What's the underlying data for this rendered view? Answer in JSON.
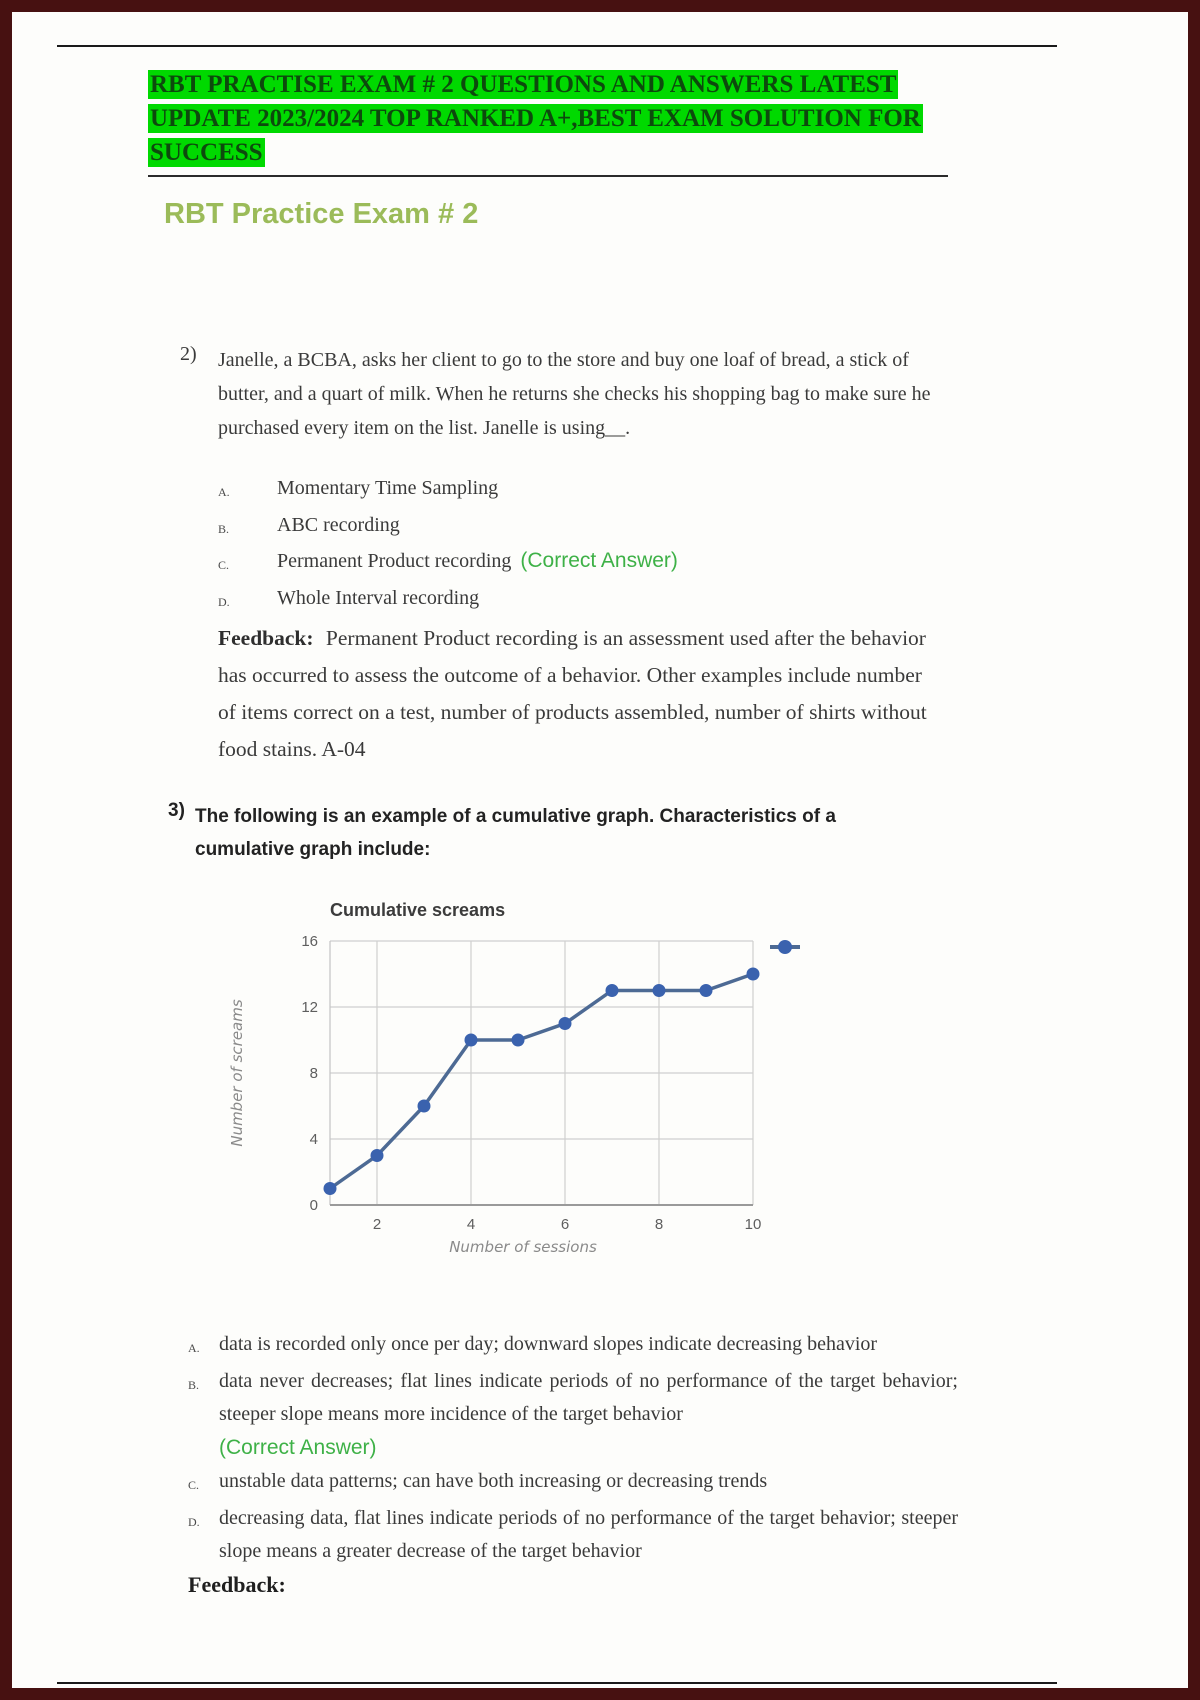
{
  "document": {
    "header_banner": "RBT PRACTISE EXAM # 2 QUESTIONS AND ANSWERS LATEST UPDATE 2023/2024 TOP RANKED A+,BEST EXAM SOLUTION FOR SUCCESS",
    "title": "RBT Practice Exam # 2"
  },
  "question_2": {
    "number": "2)",
    "prompt": "Janelle, a BCBA, asks her client to go to the store and buy one loaf of bread, a stick of butter, and a quart of milk. When he returns she checks his shopping bag to make sure he purchased every item on the list.  Janelle is using__.",
    "options": [
      {
        "letter": "A.",
        "text": "Momentary Time Sampling"
      },
      {
        "letter": "B.",
        "text": "ABC recording"
      },
      {
        "letter": "C.",
        "text": "Permanent Product recording",
        "correct_label": "(Correct Answer)"
      },
      {
        "letter": "D.",
        "text": "Whole Interval recording"
      }
    ],
    "feedback_label": "Feedback:",
    "feedback_text": "Permanent Product recording is an assessment used after the behavior has occurred to assess the outcome of a behavior. Other examples include number of items correct on a test, number of products assembled, number of shirts without food stains. A-04"
  },
  "question_3": {
    "number": "3)",
    "prompt": "The following is an example of a cumulative graph. Characteristics of a cumulative graph include:",
    "options": [
      {
        "letter": "A.",
        "text": "data is recorded only once per day; downward slopes indicate decreasing behavior"
      },
      {
        "letter": "B.",
        "text": "data never decreases; flat lines indicate periods of no performance of the target behavior; steeper slope means more incidence of the target behavior",
        "correct_label": "(Correct Answer)"
      },
      {
        "letter": "C.",
        "text": "unstable data patterns; can have both increasing or decreasing trends"
      },
      {
        "letter": "D.",
        "text": "decreasing data, flat lines indicate periods of no performance of the target behavior; steeper slope means a greater decrease of the target behavior"
      }
    ],
    "feedback_label": "Feedback:"
  },
  "chart_data": {
    "type": "line",
    "title": "Cumulative screams",
    "xlabel": "Number of sessions",
    "ylabel": "Number of screams",
    "x": [
      1,
      2,
      3,
      4,
      5,
      6,
      7,
      8,
      9,
      10
    ],
    "values": [
      1,
      3,
      6,
      10,
      10,
      11,
      13,
      13,
      13,
      14
    ],
    "x_ticks": [
      2,
      4,
      6,
      8,
      10
    ],
    "y_ticks": [
      0,
      4,
      8,
      12,
      16
    ],
    "xlim": [
      1,
      10
    ],
    "ylim": [
      0,
      16
    ],
    "grid": true,
    "legend": "unlabeled series marker at top right",
    "line_color": "#4d6a94",
    "point_color": "#3a62ae"
  },
  "colors": {
    "banner_highlight": "#00d900",
    "banner_text": "#0d4a0d",
    "exam_title_green": "#9bbb59",
    "correct_answer_green": "#3eb147",
    "body_text": "#3a3a3a",
    "page_frame": "#471111"
  }
}
